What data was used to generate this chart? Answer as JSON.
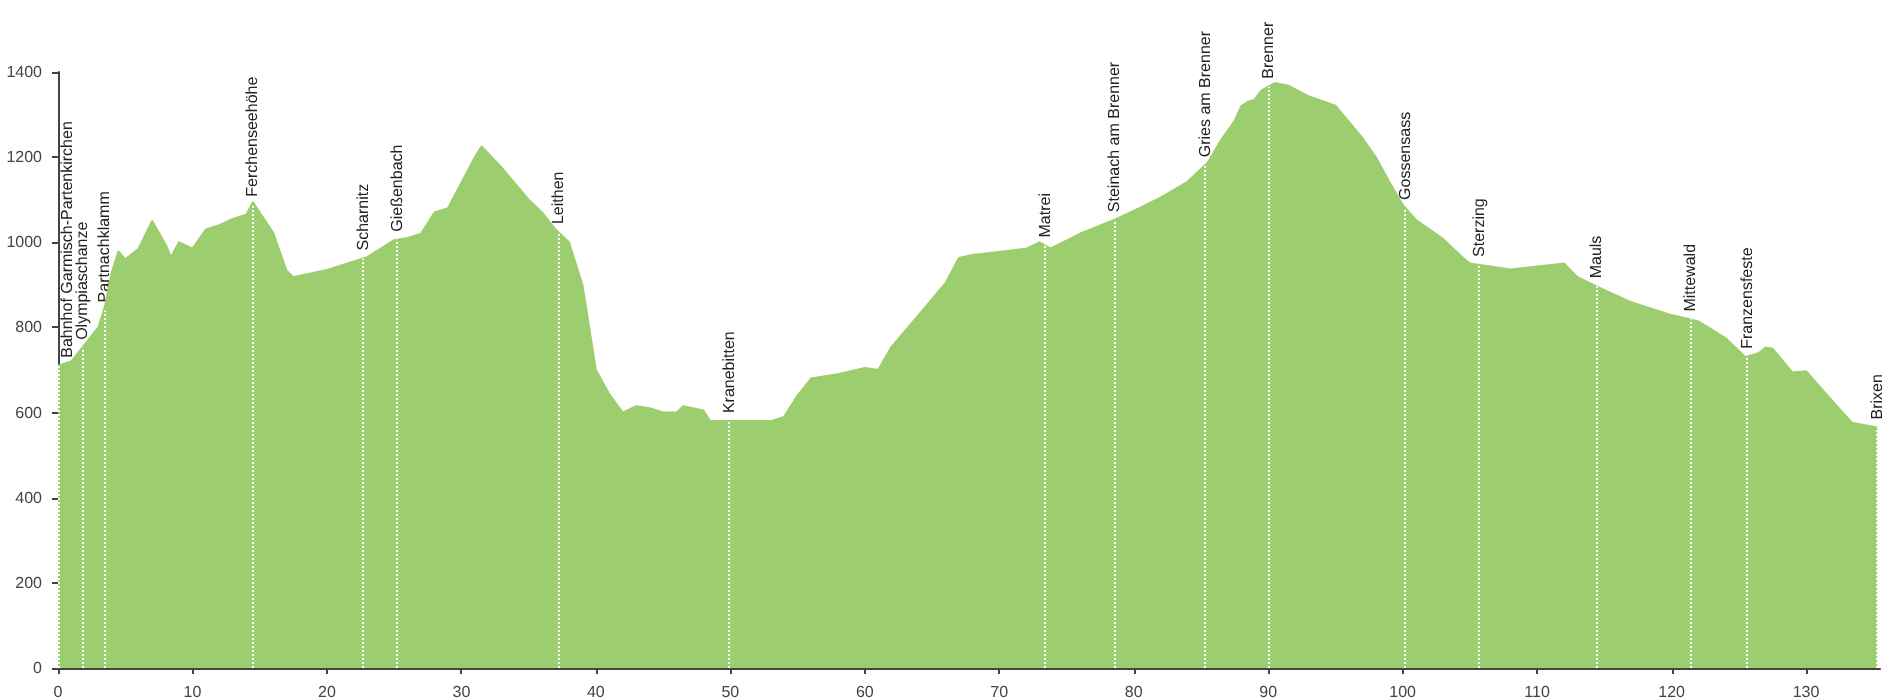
{
  "chart_data": {
    "type": "area",
    "x": [
      0,
      1,
      2,
      3,
      3.5,
      4,
      4.5,
      5,
      6,
      7,
      8,
      8.4,
      9,
      10,
      11,
      12,
      13,
      14,
      14.5,
      15,
      16,
      17,
      17.5,
      20,
      23,
      25,
      26,
      27,
      28,
      29,
      30,
      31,
      31.5,
      33,
      35,
      36,
      37,
      38,
      39,
      40,
      41,
      42,
      43,
      44,
      45,
      46,
      46.5,
      48,
      48.5,
      50,
      53,
      54,
      55,
      56,
      58,
      60,
      61,
      62,
      64,
      66,
      67,
      68,
      72,
      73,
      73.8,
      76,
      78.5,
      80,
      82,
      84,
      85.5,
      86.5,
      87.5,
      88,
      88.5,
      89,
      89.5,
      90.5,
      91.5,
      93,
      95,
      97,
      98,
      99,
      100,
      101,
      103,
      104.5,
      105,
      108,
      112,
      113,
      114.5,
      117,
      120,
      122,
      124,
      125.5,
      126.5,
      127,
      127.5,
      129,
      130,
      131.5,
      133.4,
      135.3
    ],
    "series": [
      {
        "color": "#9ccd6e",
        "values": [
          710,
          720,
          760,
          800,
          850,
          930,
          978,
          960,
          985,
          1050,
          995,
          965,
          1000,
          985,
          1030,
          1040,
          1055,
          1065,
          1094,
          1070,
          1022,
          933,
          918,
          935,
          965,
          1005,
          1010,
          1020,
          1070,
          1080,
          1140,
          1200,
          1225,
          1175,
          1100,
          1070,
          1030,
          1000,
          900,
          700,
          643,
          600,
          615,
          610,
          600,
          600,
          615,
          605,
          580,
          580,
          580,
          590,
          640,
          680,
          690,
          705,
          700,
          755,
          829,
          904,
          963,
          970,
          985,
          1000,
          985,
          1020,
          1052,
          1074,
          1105,
          1142,
          1187,
          1240,
          1285,
          1320,
          1330,
          1335,
          1357,
          1374,
          1368,
          1343,
          1321,
          1245,
          1200,
          1142,
          1088,
          1052,
          1008,
          963,
          950,
          936,
          950,
          918,
          895,
          859,
          829,
          814,
          775,
          730,
          740,
          753,
          750,
          694,
          697,
          643,
          576,
          565
        ]
      }
    ],
    "xlim": [
      0,
      135.5
    ],
    "xticks": [
      0,
      10,
      20,
      30,
      40,
      50,
      60,
      70,
      80,
      90,
      100,
      110,
      120,
      130
    ],
    "ylim": [
      0,
      1400
    ],
    "yticks": [
      0,
      200,
      400,
      600,
      800,
      1000,
      1200,
      1400
    ],
    "grid": false,
    "marker": "none",
    "ref_lines": [
      {
        "axis": "x",
        "value": 0,
        "label": "Bahnhof Garmisch-Partenkirchen",
        "color": "#ffffff",
        "line_style": "dotted"
      },
      {
        "axis": "x",
        "value": 1.8,
        "label": "Olympiaschanze",
        "color": "#ffffff",
        "line_style": "dotted"
      },
      {
        "axis": "x",
        "value": 3.4,
        "label": "Partnachklamm",
        "color": "#ffffff",
        "line_style": "dotted"
      },
      {
        "axis": "x",
        "value": 14.4,
        "label": "Ferchenseehöhe",
        "color": "#ffffff",
        "line_style": "dotted"
      },
      {
        "axis": "x",
        "value": 22.7,
        "label": "Scharnitz",
        "color": "#ffffff",
        "line_style": "dotted"
      },
      {
        "axis": "x",
        "value": 25.2,
        "label": "Gießenbach",
        "color": "#ffffff",
        "line_style": "dotted"
      },
      {
        "axis": "x",
        "value": 37.2,
        "label": "Leithen",
        "color": "#ffffff",
        "line_style": "dotted"
      },
      {
        "axis": "x",
        "value": 49.9,
        "label": "Kranebitten",
        "color": "#ffffff",
        "line_style": "dotted"
      },
      {
        "axis": "x",
        "value": 73.4,
        "label": "Matrei",
        "color": "#ffffff",
        "line_style": "dotted"
      },
      {
        "axis": "x",
        "value": 78.5,
        "label": "Steinach am Brenner",
        "color": "#ffffff",
        "line_style": "dotted"
      },
      {
        "axis": "x",
        "value": 85.3,
        "label": "Gries am Brenner",
        "color": "#ffffff",
        "line_style": "dotted"
      },
      {
        "axis": "x",
        "value": 90,
        "label": "Brenner",
        "color": "#ffffff",
        "line_style": "dotted"
      },
      {
        "axis": "x",
        "value": 100.2,
        "label": "Gossensass",
        "color": "#ffffff",
        "line_style": "dotted"
      },
      {
        "axis": "x",
        "value": 105.7,
        "label": "Sterzing",
        "color": "#ffffff",
        "line_style": "dotted"
      },
      {
        "axis": "x",
        "value": 114.4,
        "label": "Mauls",
        "color": "#ffffff",
        "line_style": "dotted"
      },
      {
        "axis": "x",
        "value": 121.4,
        "label": "Mittewald",
        "color": "#ffffff",
        "line_style": "dotted"
      },
      {
        "axis": "x",
        "value": 125.6,
        "label": "Franzensfeste",
        "color": "#ffffff",
        "line_style": "dotted"
      },
      {
        "axis": "x",
        "value": 135.3,
        "label": "Brixen",
        "color": "#ffffff",
        "line_style": "dotted"
      }
    ]
  }
}
